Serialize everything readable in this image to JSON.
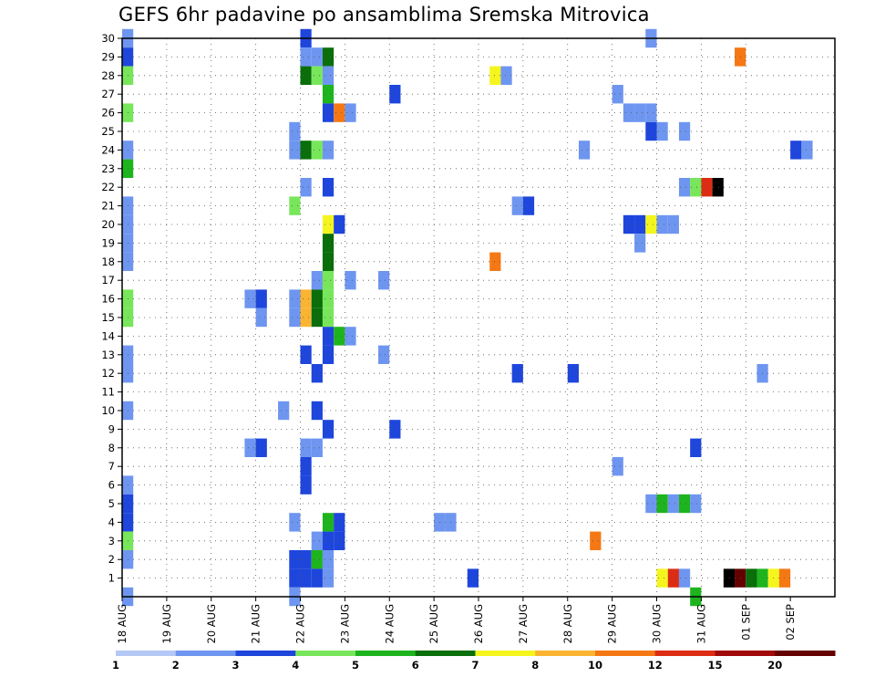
{
  "chart_data": {
    "type": "heatmap",
    "title": "GEFS 6hr padavine po ansamblima Sremska Mitrovica",
    "x_tick_labels": [
      "18 AUG",
      "19 AUG",
      "20 AUG",
      "21 AUG",
      "22 AUG",
      "23 AUG",
      "24 AUG",
      "25 AUG",
      "26 AUG",
      "27 AUG",
      "28 AUG",
      "29 AUG",
      "30 AUG",
      "31 AUG",
      "01 SEP",
      "02 SEP"
    ],
    "y_tick_labels": [
      "1",
      "2",
      "3",
      "4",
      "5",
      "6",
      "7",
      "8",
      "9",
      "10",
      "11",
      "12",
      "13",
      "14",
      "15",
      "16",
      "17",
      "18",
      "19",
      "20",
      "21",
      "22",
      "23",
      "24",
      "25",
      "26",
      "27",
      "28",
      "29",
      "30"
    ],
    "grid": true,
    "legend_placement": "bottom",
    "legend": {
      "labels": [
        "1",
        "2",
        "3",
        "4",
        "5",
        "6",
        "7",
        "8",
        "10",
        "12",
        "15",
        "20"
      ],
      "colors": [
        "#b4c8f5",
        "#6e96f0",
        "#1e46dc",
        "#78e65a",
        "#1eb41e",
        "#0a6e0a",
        "#f5f51e",
        "#fab432",
        "#f57814",
        "#dc2d14",
        "#a00a0a",
        "#640000"
      ]
    },
    "cells": [
      [
        0,
        30,
        1
      ],
      [
        0,
        29,
        2
      ],
      [
        0,
        28,
        3
      ],
      [
        0,
        26,
        3
      ],
      [
        0,
        24,
        1
      ],
      [
        0,
        23,
        4
      ],
      [
        0,
        21,
        1
      ],
      [
        0,
        20,
        1
      ],
      [
        0,
        19,
        1
      ],
      [
        0,
        18,
        1
      ],
      [
        0,
        16,
        3
      ],
      [
        0,
        15,
        3
      ],
      [
        0,
        13,
        1
      ],
      [
        0,
        12,
        1
      ],
      [
        0,
        10,
        1
      ],
      [
        0,
        6,
        1
      ],
      [
        0,
        5,
        2
      ],
      [
        0,
        4,
        2
      ],
      [
        0,
        3,
        3
      ],
      [
        0,
        2,
        1
      ],
      [
        0,
        0,
        1
      ],
      [
        11,
        8,
        1
      ],
      [
        12,
        8,
        2
      ],
      [
        11,
        16,
        1
      ],
      [
        12,
        16,
        2
      ],
      [
        12,
        15,
        1
      ],
      [
        14,
        10,
        1
      ],
      [
        15,
        21,
        3
      ],
      [
        15,
        25,
        1
      ],
      [
        15,
        24,
        1
      ],
      [
        15,
        16,
        1
      ],
      [
        15,
        15,
        1
      ],
      [
        15,
        4,
        1
      ],
      [
        15,
        2,
        2
      ],
      [
        15,
        1,
        2
      ],
      [
        15,
        0,
        1
      ],
      [
        16,
        30,
        2
      ],
      [
        16,
        29,
        1
      ],
      [
        16,
        28,
        5
      ],
      [
        16,
        24,
        5
      ],
      [
        16,
        22,
        1
      ],
      [
        16,
        16,
        7
      ],
      [
        16,
        15,
        7
      ],
      [
        16,
        13,
        2
      ],
      [
        16,
        8,
        1
      ],
      [
        16,
        7,
        2
      ],
      [
        16,
        6,
        2
      ],
      [
        16,
        2,
        2
      ],
      [
        16,
        1,
        2
      ],
      [
        17,
        29,
        1
      ],
      [
        17,
        28,
        3
      ],
      [
        17,
        24,
        3
      ],
      [
        17,
        17,
        1
      ],
      [
        17,
        16,
        5
      ],
      [
        17,
        15,
        5
      ],
      [
        17,
        10,
        2
      ],
      [
        17,
        12,
        2
      ],
      [
        17,
        8,
        1
      ],
      [
        17,
        3,
        1
      ],
      [
        17,
        2,
        4
      ],
      [
        17,
        1,
        2
      ],
      [
        18,
        29,
        5
      ],
      [
        18,
        28,
        1
      ],
      [
        18,
        27,
        4
      ],
      [
        18,
        26,
        2
      ],
      [
        18,
        24,
        1
      ],
      [
        18,
        22,
        2
      ],
      [
        18,
        20,
        6
      ],
      [
        18,
        19,
        5
      ],
      [
        18,
        18,
        5
      ],
      [
        18,
        17,
        3
      ],
      [
        18,
        16,
        3
      ],
      [
        18,
        15,
        3
      ],
      [
        18,
        14,
        2
      ],
      [
        18,
        13,
        2
      ],
      [
        18,
        9,
        2
      ],
      [
        18,
        4,
        4
      ],
      [
        18,
        3,
        2
      ],
      [
        18,
        2,
        1
      ],
      [
        18,
        1,
        1
      ],
      [
        19,
        26,
        8
      ],
      [
        19,
        20,
        2
      ],
      [
        19,
        14,
        4
      ],
      [
        19,
        4,
        2
      ],
      [
        19,
        3,
        2
      ],
      [
        20,
        26,
        1
      ],
      [
        20,
        17,
        1
      ],
      [
        20,
        14,
        1
      ],
      [
        23,
        17,
        1
      ],
      [
        23,
        13,
        1
      ],
      [
        24,
        27,
        2
      ],
      [
        24,
        9,
        2
      ],
      [
        28,
        4,
        1
      ],
      [
        29,
        4,
        1
      ],
      [
        31,
        1,
        2
      ],
      [
        33,
        28,
        6
      ],
      [
        33,
        18,
        8
      ],
      [
        34,
        28,
        1
      ],
      [
        35,
        21,
        1
      ],
      [
        36,
        21,
        2
      ],
      [
        35,
        12,
        2
      ],
      [
        40,
        12,
        2
      ],
      [
        41,
        24,
        1
      ],
      [
        42,
        3,
        8
      ],
      [
        44,
        27,
        1
      ],
      [
        44,
        7,
        1
      ],
      [
        45,
        26,
        1
      ],
      [
        46,
        26,
        1
      ],
      [
        47,
        26,
        1
      ],
      [
        45,
        20,
        2
      ],
      [
        46,
        20,
        2
      ],
      [
        46,
        19,
        1
      ],
      [
        47,
        20,
        6
      ],
      [
        48,
        20,
        1
      ],
      [
        49,
        20,
        1
      ],
      [
        47,
        25,
        2
      ],
      [
        48,
        25,
        1
      ],
      [
        50,
        25,
        1
      ],
      [
        47,
        30,
        1
      ],
      [
        47,
        5,
        1
      ],
      [
        48,
        5,
        4
      ],
      [
        49,
        5,
        1
      ],
      [
        50,
        5,
        4
      ],
      [
        51,
        5,
        1
      ],
      [
        48,
        1,
        6
      ],
      [
        49,
        1,
        9
      ],
      [
        50,
        1,
        1
      ],
      [
        51,
        0,
        4
      ],
      [
        50,
        22,
        1
      ],
      [
        51,
        22,
        3
      ],
      [
        52,
        22,
        9
      ],
      [
        53,
        22,
        12
      ],
      [
        51,
        8,
        2
      ],
      [
        54,
        1,
        12
      ],
      [
        55,
        1,
        11
      ],
      [
        56,
        1,
        5
      ],
      [
        57,
        1,
        4
      ],
      [
        58,
        1,
        6
      ],
      [
        59,
        1,
        8
      ],
      [
        55,
        29,
        8
      ],
      [
        57,
        12,
        1
      ],
      [
        60,
        24,
        2
      ],
      [
        61,
        24,
        1
      ]
    ]
  }
}
